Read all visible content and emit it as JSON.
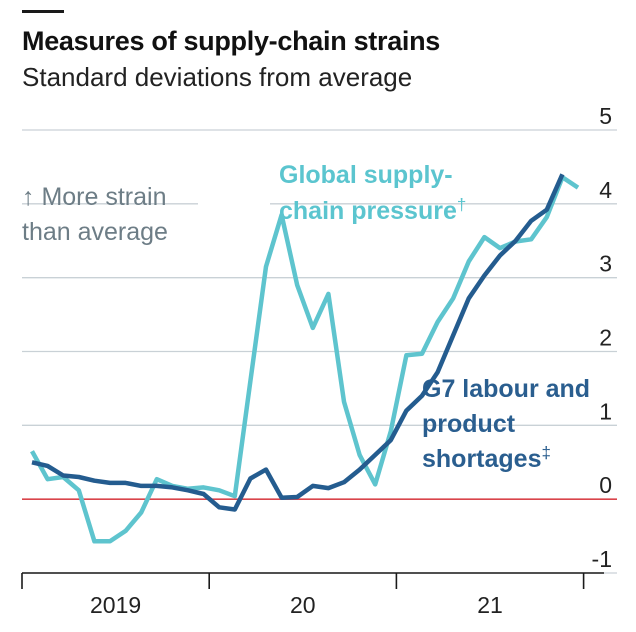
{
  "title": "Measures of supply-chain strains",
  "subtitle": "Standard deviations from average",
  "colors": {
    "global_series": "#5ec4ce",
    "g7_series": "#245c8f",
    "zero_line": "#d9444b",
    "grid": "#c9d1d6",
    "annotation_grey": "#6d7d86"
  },
  "annotations": {
    "strain_line1": "↑ More strain",
    "strain_line2": "than average",
    "global_line1": "Global supply-",
    "global_line2": "chain pressure",
    "global_mark": "†",
    "g7_line1": "G7 labour and",
    "g7_line2": "product",
    "g7_line3": "shortages",
    "g7_mark": "‡"
  },
  "chart_data": {
    "type": "line",
    "title": "Measures of supply-chain strains",
    "subtitle": "Standard deviations from average",
    "x_labels": [
      "2019",
      "20",
      "21"
    ],
    "y_ticks": [
      5,
      4,
      3,
      2,
      1,
      0,
      -1
    ],
    "y_tick_labels": [
      "5",
      "4",
      "3",
      "2",
      "1",
      "0",
      "-1"
    ],
    "ylim": [
      -1,
      5
    ],
    "x_range": [
      "2019-01",
      "2021-12"
    ],
    "grid": true,
    "series": [
      {
        "name": "Global supply-chain pressure†",
        "x": [
          "2019-01",
          "2019-02",
          "2019-03",
          "2019-04",
          "2019-05",
          "2019-06",
          "2019-07",
          "2019-08",
          "2019-09",
          "2019-10",
          "2019-11",
          "2019-12",
          "2020-01",
          "2020-02",
          "2020-03",
          "2020-04",
          "2020-05",
          "2020-06",
          "2020-07",
          "2020-08",
          "2020-09",
          "2020-10",
          "2020-11",
          "2020-12",
          "2021-01",
          "2021-02",
          "2021-03",
          "2021-04",
          "2021-05",
          "2021-06",
          "2021-07",
          "2021-08",
          "2021-09",
          "2021-10",
          "2021-11",
          "2021-12"
        ],
        "values": [
          0.65,
          0.27,
          0.3,
          0.12,
          -0.57,
          -0.57,
          -0.43,
          -0.18,
          0.27,
          0.18,
          0.14,
          0.16,
          0.12,
          0.04,
          1.6,
          3.15,
          3.85,
          2.9,
          2.32,
          2.78,
          1.32,
          0.6,
          0.2,
          0.92,
          1.95,
          1.97,
          2.4,
          2.72,
          3.22,
          3.55,
          3.4,
          3.49,
          3.52,
          3.82,
          4.36,
          4.22
        ]
      },
      {
        "name": "G7 labour and product shortages‡",
        "x": [
          "2019-01",
          "2019-02",
          "2019-03",
          "2019-04",
          "2019-05",
          "2019-06",
          "2019-07",
          "2019-08",
          "2019-09",
          "2019-10",
          "2019-11",
          "2019-12",
          "2020-01",
          "2020-02",
          "2020-03",
          "2020-04",
          "2020-05",
          "2020-06",
          "2020-07",
          "2020-08",
          "2020-09",
          "2020-10",
          "2020-11",
          "2020-12",
          "2021-01",
          "2021-02",
          "2021-03",
          "2021-04",
          "2021-05",
          "2021-06",
          "2021-07",
          "2021-08",
          "2021-09",
          "2021-10",
          "2021-11"
        ],
        "values": [
          0.5,
          0.45,
          0.32,
          0.3,
          0.25,
          0.22,
          0.22,
          0.18,
          0.18,
          0.16,
          0.12,
          0.07,
          -0.11,
          -0.14,
          0.28,
          0.4,
          0.02,
          0.03,
          0.18,
          0.15,
          0.23,
          0.4,
          0.6,
          0.8,
          1.2,
          1.4,
          1.72,
          2.22,
          2.72,
          3.03,
          3.3,
          3.5,
          3.77,
          3.92,
          4.4
        ]
      }
    ]
  }
}
